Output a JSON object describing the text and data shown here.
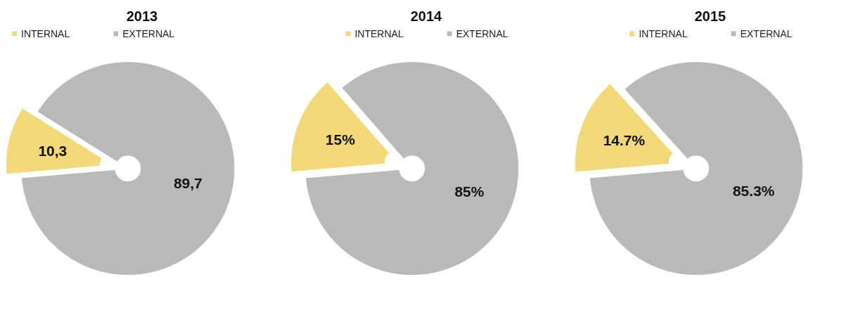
{
  "chart_data": [
    {
      "type": "pie",
      "title": "2013",
      "categories": [
        "INTERNAL",
        "EXTERNAL"
      ],
      "values": [
        10.3,
        89.7
      ],
      "colors": [
        "#f2d878",
        "#b9b9b9"
      ],
      "value_labels": [
        "10,3",
        "89,7"
      ],
      "legend": "top left"
    },
    {
      "type": "pie",
      "title": "2014",
      "categories": [
        "INTERNAL",
        "EXTERNAL"
      ],
      "values": [
        15,
        85
      ],
      "colors": [
        "#f2d878",
        "#b9b9b9"
      ],
      "value_labels": [
        "15%",
        "85%"
      ],
      "legend": "top"
    },
    {
      "type": "pie",
      "title": "2015",
      "categories": [
        "INTERNAL",
        "EXTERNAL"
      ],
      "values": [
        14.7,
        85.3
      ],
      "colors": [
        "#f2d878",
        "#b9b9b9"
      ],
      "value_labels": [
        "14.7%",
        "85.3%"
      ],
      "legend": "top"
    }
  ]
}
